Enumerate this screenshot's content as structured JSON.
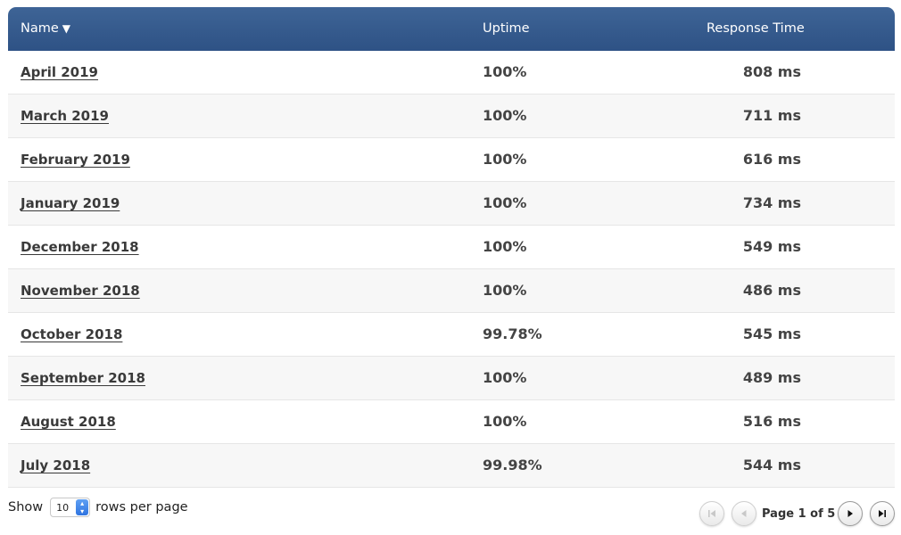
{
  "table": {
    "headers": {
      "name": "Name",
      "sort_indicator": "▼",
      "uptime": "Uptime",
      "response_time": "Response Time"
    },
    "rows": [
      {
        "name": "April 2019",
        "uptime": "100%",
        "response_time": "808 ms"
      },
      {
        "name": "March 2019",
        "uptime": "100%",
        "response_time": "711 ms"
      },
      {
        "name": "February 2019",
        "uptime": "100%",
        "response_time": "616 ms"
      },
      {
        "name": "January 2019",
        "uptime": "100%",
        "response_time": "734 ms"
      },
      {
        "name": "December 2018",
        "uptime": "100%",
        "response_time": "549 ms"
      },
      {
        "name": "November 2018",
        "uptime": "100%",
        "response_time": "486 ms"
      },
      {
        "name": "October 2018",
        "uptime": "99.78%",
        "response_time": "545 ms"
      },
      {
        "name": "September 2018",
        "uptime": "100%",
        "response_time": "489 ms"
      },
      {
        "name": "August 2018",
        "uptime": "100%",
        "response_time": "516 ms"
      },
      {
        "name": "July 2018",
        "uptime": "99.98%",
        "response_time": "544 ms"
      }
    ]
  },
  "footer": {
    "show_label": "Show",
    "rows_per_page_value": "10",
    "rows_per_page_label": "rows per page",
    "page_label": "Page 1 of 5"
  },
  "pagination": {
    "first_icon": "first-page-icon",
    "prev_icon": "previous-page-icon",
    "next_icon": "next-page-icon",
    "last_icon": "last-page-icon"
  },
  "colors": {
    "header_bg": "#34598c",
    "header_text": "#ffffff",
    "stepper_accent": "#2f74e0"
  }
}
